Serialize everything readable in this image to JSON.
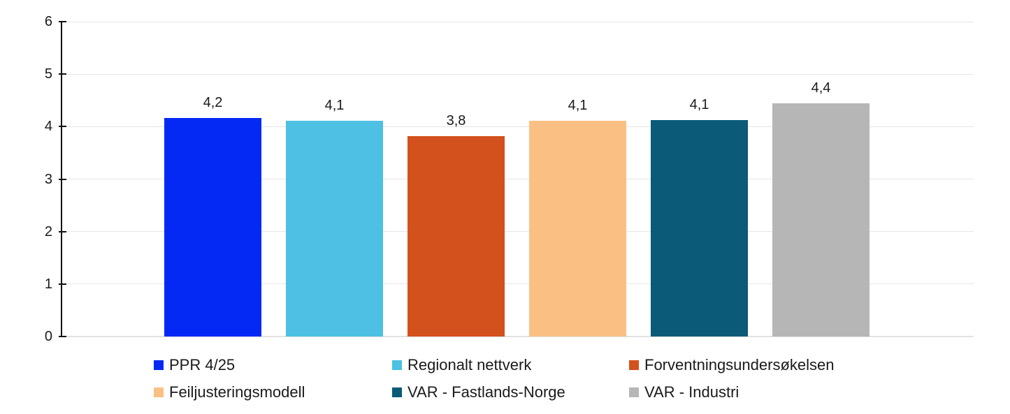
{
  "chart_data": {
    "type": "bar",
    "title": "",
    "xlabel": "",
    "ylabel": "",
    "categories": [
      "PPR 4/25",
      "Regionalt nettverk",
      "Forventningsundersøkelsen",
      "Feiljusteringsmodell",
      "VAR - Fastlands-Norge",
      "VAR - Industri"
    ],
    "values": [
      4.17,
      4.11,
      3.82,
      4.11,
      4.13,
      4.44
    ],
    "value_labels": [
      "4,2",
      "4,1",
      "3,8",
      "4,1",
      "4,1",
      "4,4"
    ],
    "colors": [
      "#0529F5",
      "#4DC0E3",
      "#D3511C",
      "#FAC083",
      "#0A5A78",
      "#B6B6B6"
    ],
    "ylim": [
      0,
      6
    ],
    "yticks": [
      0,
      1,
      2,
      3,
      4,
      5,
      6
    ],
    "ytick_labels": [
      "0",
      "1",
      "2",
      "3",
      "4",
      "5",
      "6"
    ],
    "grid": "horizontal",
    "gridline_color": "#e6e6e6",
    "axis_color": "#111111",
    "text_color": "#1a1a1a",
    "legend_position": "bottom",
    "decimal_separator": ","
  }
}
